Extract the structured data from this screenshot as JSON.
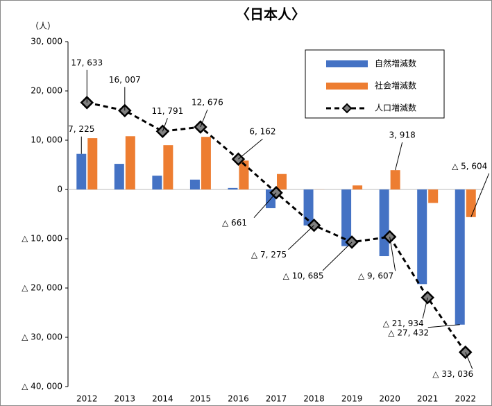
{
  "chart_data": {
    "type": "bar_line",
    "title": "〈日本人〉",
    "y_label": "（人）",
    "categories": [
      "2012",
      "2013",
      "2014",
      "2015",
      "2016",
      "2017",
      "2018",
      "2019",
      "2020",
      "2021",
      "2022"
    ],
    "series": [
      {
        "name": "自然増減数",
        "type": "bar",
        "color": "#4472c4",
        "values": [
          7225,
          5200,
          2800,
          2000,
          300,
          -3800,
          -7300,
          -11500,
          -13525,
          -19200,
          -27432
        ],
        "value_labels": [
          "7, 225",
          null,
          null,
          null,
          null,
          null,
          null,
          null,
          null,
          null,
          "△ 27, 432"
        ]
      },
      {
        "name": "社会増減数",
        "type": "bar",
        "color": "#ed7d31",
        "values": [
          10408,
          10807,
          8991,
          10676,
          5862,
          3139,
          25,
          815,
          3918,
          -2734,
          -5604
        ],
        "value_labels": [
          null,
          null,
          null,
          null,
          null,
          null,
          null,
          null,
          "3, 918",
          null,
          "△ 5, 604"
        ]
      },
      {
        "name": "人口増減数",
        "type": "line",
        "color": "#000000",
        "values": [
          17633,
          16007,
          11791,
          12676,
          6162,
          -661,
          -7275,
          -10685,
          -9607,
          -21934,
          -33036
        ],
        "value_labels": [
          "17, 633",
          "16, 007",
          "11, 791",
          "12, 676",
          "6, 162",
          "△ 661",
          "△ 7, 275",
          "△ 10, 685",
          "△ 9, 607",
          "△ 21, 934",
          "△ 33, 036"
        ]
      }
    ],
    "ylim": [
      -40000,
      30000
    ],
    "yticks": [
      {
        "value": -40000,
        "label": "△ 40, 000"
      },
      {
        "value": -30000,
        "label": "△ 30, 000"
      },
      {
        "value": -20000,
        "label": "△ 20, 000"
      },
      {
        "value": -10000,
        "label": "△ 10, 000"
      },
      0,
      {
        "value": 10000,
        "label": "10, 000"
      },
      {
        "value": 20000,
        "label": "20, 000"
      },
      {
        "value": 30000,
        "label": "30, 000"
      }
    ],
    "legend": "upper right"
  }
}
